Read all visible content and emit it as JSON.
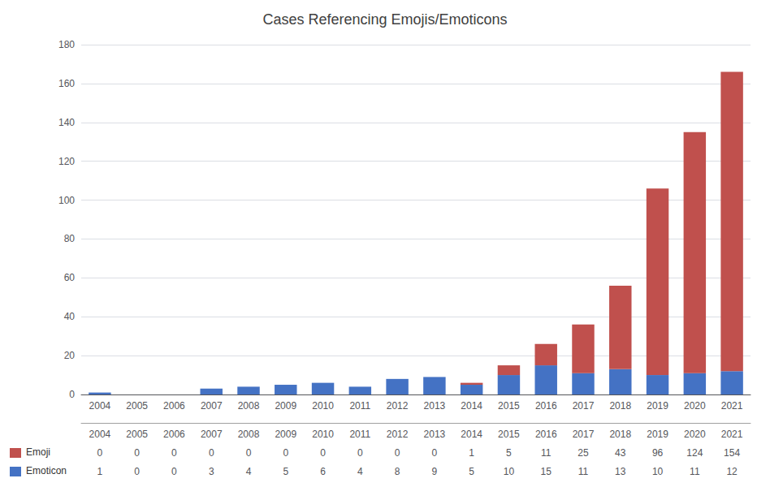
{
  "chart_data": {
    "type": "bar",
    "title": "Cases Referencing Emojis/Emoticons",
    "categories": [
      "2004",
      "2005",
      "2006",
      "2007",
      "2008",
      "2009",
      "2010",
      "2011",
      "2012",
      "2013",
      "2014",
      "2015",
      "2016",
      "2017",
      "2018",
      "2019",
      "2020",
      "2021"
    ],
    "series": [
      {
        "name": "Emoticon",
        "color": "#4472c4",
        "values": [
          1,
          0,
          0,
          3,
          4,
          5,
          6,
          4,
          8,
          9,
          5,
          10,
          15,
          11,
          13,
          10,
          11,
          12
        ]
      },
      {
        "name": "Emoji",
        "color": "#c0504d",
        "values": [
          0,
          0,
          0,
          0,
          0,
          0,
          0,
          0,
          0,
          0,
          1,
          5,
          11,
          25,
          43,
          96,
          124,
          154
        ]
      }
    ],
    "stacked": true,
    "ylim": [
      0,
      180
    ],
    "yticks": [
      0,
      20,
      40,
      60,
      80,
      100,
      120,
      140,
      160,
      180
    ],
    "grid": true
  }
}
